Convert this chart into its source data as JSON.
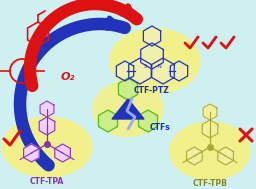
{
  "bg_color": "#cff0f0",
  "ctf_ptz_label": "CTF-PTZ",
  "ctf_tpa_label": "CTF-TPA",
  "ctf_tpb_label": "CTF-TPB",
  "ctfs_label": "CTFs",
  "o2_label": "O₂",
  "check_color": "#dd1111",
  "x_color": "#dd1111",
  "arrow_red": "#dd1111",
  "arrow_blue": "#2233bb",
  "mol_blue": "#2233bb",
  "mol_purple": "#8833aa",
  "mol_green": "#55bb22",
  "mol_olive": "#aaaa33",
  "halo_color": "#f5f080",
  "label_blue": "#1133bb",
  "label_purple": "#8833aa",
  "label_olive": "#888822",
  "lightning_color": "#3355ff"
}
